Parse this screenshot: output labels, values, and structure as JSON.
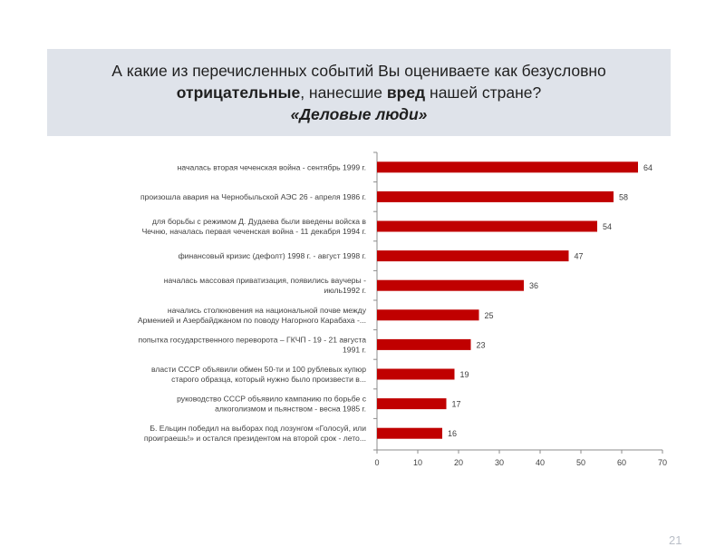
{
  "title": {
    "line1": "А какие из перечисленных событий Вы оцениваете как безусловно",
    "line2_bold1": "отрицательные",
    "line2_mid": ", нанесшие ",
    "line2_bold2": "вред",
    "line2_end": " нашей стране?",
    "subtitle": "«Деловые люди»"
  },
  "chart_data": {
    "type": "bar",
    "orientation": "horizontal",
    "bar_color": "#c00000",
    "categories": [
      [
        "началась вторая чеченская война - сентябрь 1999 г."
      ],
      [
        "произошла авария на Чернобыльской АЭС 26 - апреля 1986 г."
      ],
      [
        "для борьбы с режимом Д. Дудаева были введены войска в",
        "Чечню, началась первая чеченская война - 11 декабря 1994 г."
      ],
      [
        "финансовый кризис (дефолт) 1998 г. - август 1998 г."
      ],
      [
        "началась массовая приватизация, появились ваучеры -",
        "июль1992 г."
      ],
      [
        "начались столкновения на национальной почве между",
        "Арменией и Азербайджаном по поводу Нагорного Карабаха -..."
      ],
      [
        "попытка государственного переворота – ГКЧП - 19 - 21 августа",
        "1991 г."
      ],
      [
        "власти СССР объявили обмен 50-ти и 100 рублевых купюр",
        "старого образца, который нужно было произвести в..."
      ],
      [
        "руководство СССР объявило кампанию по борьбе с",
        "алкоголизмом и пьянством - весна 1985 г."
      ],
      [
        "Б. Ельцин победил на выборах под лозунгом «Голосуй, или",
        "проиграешь!» и остался президентом на второй срок - лето..."
      ]
    ],
    "values": [
      64,
      58,
      54,
      47,
      36,
      25,
      23,
      19,
      17,
      16
    ],
    "xlim": [
      0,
      70
    ],
    "xticks": [
      0,
      10,
      20,
      30,
      40,
      50,
      60,
      70
    ],
    "grid": false,
    "legend": "none"
  },
  "page_number": "21"
}
